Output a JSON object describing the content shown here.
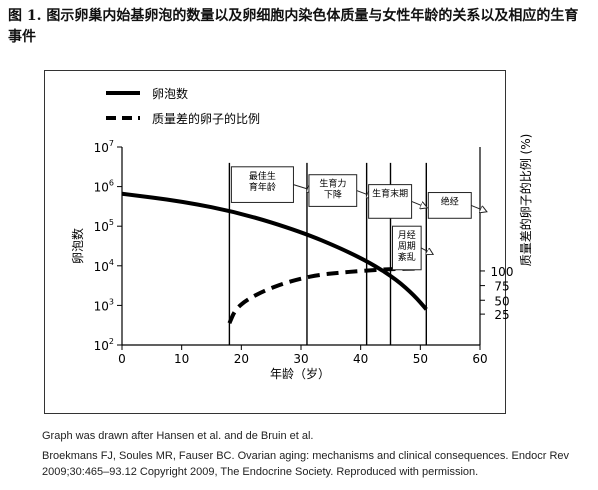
{
  "figure_title": "图 1. 图示卵巢内始基卵泡的数量以及卵细胞内染色体质量与女性年龄的关系以及相应的生育事件",
  "caption_source": "Graph was drawn after Hansen et al. and de Bruin et al.",
  "caption_reference": "Broekmans FJ, Soules MR, Fauser BC. Ovarian aging: mechanisms and clinical consequences. Endocr Rev 2009;30:465–93.12 Copyright 2009, The Endocrine Society. Reproduced with permission.",
  "chart_data": {
    "type": "line",
    "xlabel": "年龄（岁）",
    "ylabel_left": "卵泡数",
    "ylabel_right": "质量差的卵子的比例 (%)",
    "xlim": [
      0,
      60
    ],
    "ylim_left_log10": [
      2,
      7
    ],
    "x_ticks": [
      "0",
      "10",
      "20",
      "30",
      "40",
      "50",
      "60"
    ],
    "y_left_ticks": [
      {
        "base": "10",
        "exp": "2"
      },
      {
        "base": "10",
        "exp": "3"
      },
      {
        "base": "10",
        "exp": "4"
      },
      {
        "base": "10",
        "exp": "5"
      },
      {
        "base": "10",
        "exp": "6"
      },
      {
        "base": "10",
        "exp": "7"
      }
    ],
    "y_right_ticks": [
      "25",
      "50",
      "75",
      "100"
    ],
    "right_tick_positions_log10": [
      2.78,
      3.13,
      3.5,
      3.87
    ],
    "series": [
      {
        "name": "卵泡数",
        "style": "solid",
        "x": [
          0,
          10,
          20,
          30,
          37,
          42,
          46,
          49,
          51
        ],
        "y_log10": [
          5.82,
          5.63,
          5.33,
          4.86,
          4.42,
          4.04,
          3.65,
          3.25,
          2.9
        ]
      },
      {
        "name": "质量差的卵子的比例",
        "style": "dashed",
        "x": [
          18,
          19,
          21,
          24,
          27,
          30,
          33,
          36,
          40,
          45,
          50
        ],
        "y_log10": [
          2.55,
          2.9,
          3.15,
          3.38,
          3.55,
          3.68,
          3.77,
          3.82,
          3.87,
          3.92,
          3.93
        ]
      }
    ],
    "vertical_lines_x": [
      18,
      31,
      41,
      45,
      51
    ],
    "events": [
      {
        "label": "最佳生育年龄",
        "x": [
          18,
          31
        ],
        "y_log10": [
          5.6,
          6.5
        ]
      },
      {
        "label": "生育力下降",
        "x": [
          31,
          41
        ],
        "y_log10": [
          5.5,
          6.3
        ]
      },
      {
        "label": "生育末期",
        "x": [
          41,
          50
        ],
        "y_log10": [
          5.2,
          6.05
        ]
      },
      {
        "label": "月经周期紊乱",
        "x": [
          45,
          51
        ],
        "y_log10": [
          3.9,
          5.0
        ]
      },
      {
        "label": "绝经",
        "x": [
          51,
          60
        ],
        "y_log10": [
          5.2,
          5.85
        ]
      }
    ],
    "legend_position": "top-left",
    "grid": false
  }
}
